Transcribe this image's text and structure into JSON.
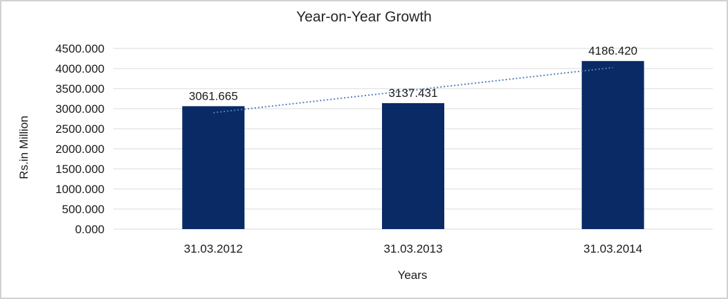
{
  "frame": {
    "background": "#ffffff",
    "border_color": "#d1d1d1"
  },
  "chart_data": {
    "type": "bar",
    "title": "Year-on-Year Growth",
    "xlabel": "Years",
    "ylabel": "Rs.in Million",
    "categories": [
      "31.03.2012",
      "31.03.2013",
      "31.03.2014"
    ],
    "values": [
      3061.665,
      3137.431,
      4186.42
    ],
    "data_labels": [
      "3061.665",
      "3137.431",
      "4186.420"
    ],
    "ylim": [
      0,
      4500
    ],
    "ytick_step": 500,
    "ytick_labels": [
      "0.000",
      "500.000",
      "1000.000",
      "1500.000",
      "2000.000",
      "2500.000",
      "3000.000",
      "3500.000",
      "4000.000",
      "4500.000"
    ],
    "grid": true,
    "legend": false,
    "trendline": {
      "kind": "linear",
      "style": "dotted"
    },
    "colors": {
      "bar": "#0A2A66",
      "trendline": "#4F81BD",
      "gridline": "#d9d9d9",
      "tick_text": "#1a1a1a",
      "label_text": "#1a1a1a",
      "title_text": "#262626"
    }
  }
}
